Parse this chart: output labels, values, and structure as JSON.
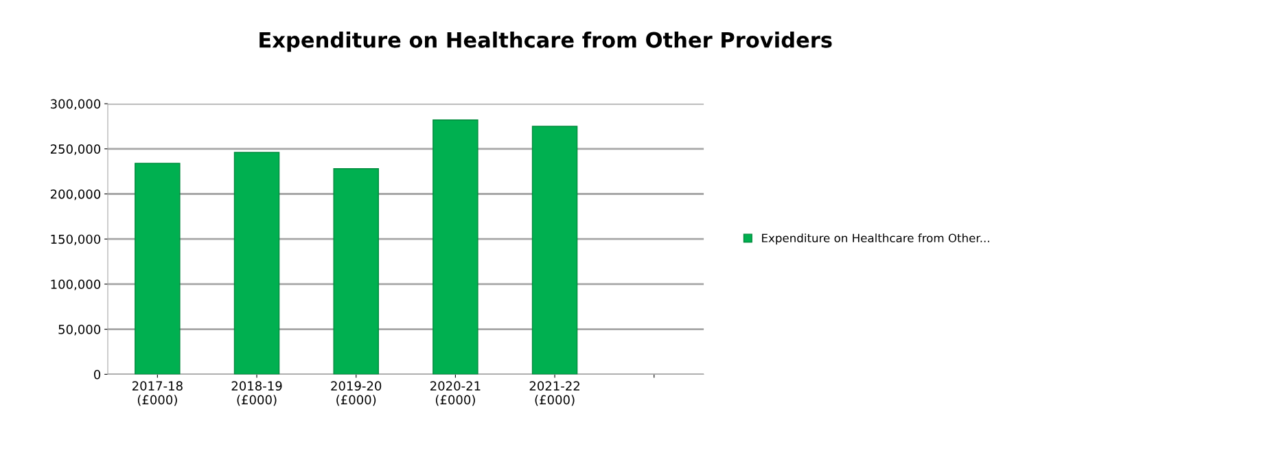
{
  "chart_data": {
    "type": "bar",
    "title": "Expenditure on Healthcare from Other Providers",
    "categories": [
      "2017-18\n(£000)",
      "2018-19\n(£000)",
      "2019-20\n(£000)",
      "2020-21\n(£000)",
      "2021-22\n(£000)",
      null
    ],
    "series": [
      {
        "name": "Expenditure on Healthcare from Other...",
        "color": "#00b050",
        "values": [
          234000,
          246000,
          228000,
          282000,
          275000,
          null
        ]
      }
    ],
    "ylim": [
      0,
      300000
    ],
    "yticks": [
      {
        "value": 0,
        "label": "0"
      },
      {
        "value": 50000,
        "label": "50,000"
      },
      {
        "value": 100000,
        "label": "100,000"
      },
      {
        "value": 150000,
        "label": "150,000"
      },
      {
        "value": 200000,
        "label": "200,000"
      },
      {
        "value": 250000,
        "label": "250,000"
      },
      {
        "value": 300000,
        "label": "300,000"
      }
    ],
    "grid": "y",
    "legend": "right"
  }
}
